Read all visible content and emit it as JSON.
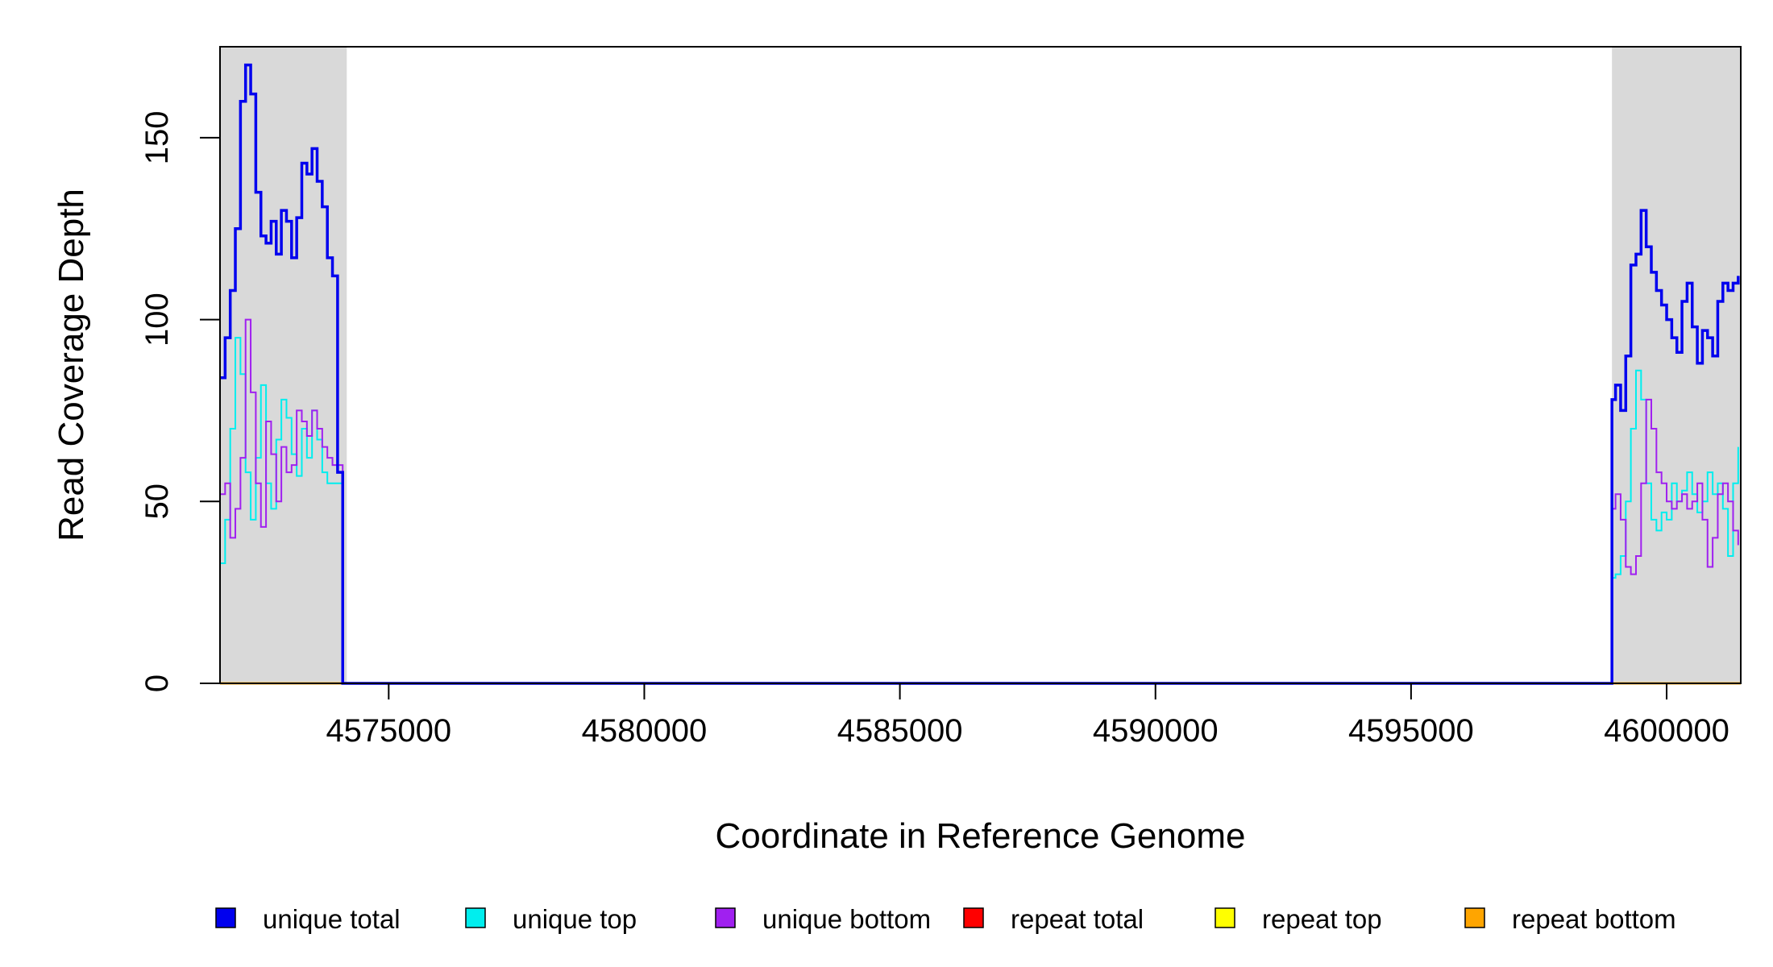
{
  "chart_data": {
    "type": "line",
    "title": "",
    "xlabel": "Coordinate in Reference Genome",
    "ylabel": "Read Coverage Depth",
    "xlim": [
      4571700,
      4601450
    ],
    "ylim": [
      0,
      175
    ],
    "xticks": [
      4575000,
      4580000,
      4585000,
      4590000,
      4595000,
      4600000
    ],
    "xtick_labels": [
      "4575000",
      "4580000",
      "4585000",
      "4590000",
      "4595000",
      "4600000"
    ],
    "yticks": [
      0,
      50,
      100,
      150
    ],
    "ytick_labels": [
      "0",
      "50",
      "100",
      "150"
    ],
    "grid": false,
    "shaded_regions": [
      {
        "x0": 4571700,
        "x1": 4574180,
        "color": "#d9d9d9"
      },
      {
        "x0": 4598930,
        "x1": 4601450,
        "color": "#d9d9d9"
      }
    ],
    "legend_position": "bottom",
    "series": [
      {
        "name": "unique total",
        "color": "#0000ee",
        "x": [
          4571700,
          4571800,
          4571900,
          4572000,
          4572100,
          4572200,
          4572300,
          4572400,
          4572500,
          4572600,
          4572700,
          4572800,
          4572900,
          4573000,
          4573100,
          4573200,
          4573300,
          4573400,
          4573500,
          4573600,
          4573700,
          4573800,
          4573900,
          4574000,
          4574100,
          4574180,
          4574200,
          4598900,
          4598930,
          4599000,
          4599100,
          4599200,
          4599300,
          4599400,
          4599500,
          4599600,
          4599700,
          4599800,
          4599900,
          4600000,
          4600100,
          4600200,
          4600300,
          4600400,
          4600500,
          4600600,
          4600700,
          4600800,
          4600900,
          4601000,
          4601100,
          4601200,
          4601300,
          4601400
        ],
        "y": [
          84,
          95,
          108,
          125,
          160,
          170,
          162,
          135,
          123,
          121,
          127,
          118,
          130,
          127,
          117,
          128,
          143,
          140,
          147,
          138,
          131,
          117,
          112,
          58,
          0,
          0,
          0,
          0,
          78,
          82,
          75,
          90,
          115,
          118,
          130,
          120,
          113,
          108,
          104,
          100,
          95,
          91,
          105,
          110,
          98,
          88,
          97,
          95,
          90,
          105,
          110,
          108,
          110,
          112
        ],
        "values_note": ""
      },
      {
        "name": "unique top",
        "color": "#00eeee",
        "x": [
          4571700,
          4571800,
          4571900,
          4572000,
          4572100,
          4572200,
          4572300,
          4572400,
          4572500,
          4572600,
          4572700,
          4572800,
          4572900,
          4573000,
          4573100,
          4573200,
          4573300,
          4573400,
          4573500,
          4573600,
          4573700,
          4573800,
          4573900,
          4574000,
          4574100,
          4574180,
          4574200,
          4598900,
          4598930,
          4599000,
          4599100,
          4599200,
          4599300,
          4599400,
          4599500,
          4599600,
          4599700,
          4599800,
          4599900,
          4600000,
          4600100,
          4600200,
          4600300,
          4600400,
          4600500,
          4600600,
          4600700,
          4600800,
          4600900,
          4601000,
          4601100,
          4601200,
          4601300,
          4601400
        ],
        "y": [
          33,
          45,
          70,
          95,
          85,
          58,
          45,
          62,
          82,
          55,
          48,
          67,
          78,
          73,
          63,
          57,
          70,
          62,
          75,
          67,
          58,
          55,
          55,
          55,
          0,
          0,
          0,
          0,
          29,
          30,
          35,
          50,
          70,
          86,
          78,
          55,
          45,
          42,
          47,
          45,
          55,
          50,
          53,
          58,
          52,
          47,
          50,
          58,
          52,
          55,
          48,
          35,
          55,
          65
        ]
      },
      {
        "name": "unique bottom",
        "color": "#a020f0",
        "x": [
          4571700,
          4571800,
          4571900,
          4572000,
          4572100,
          4572200,
          4572300,
          4572400,
          4572500,
          4572600,
          4572700,
          4572800,
          4572900,
          4573000,
          4573100,
          4573200,
          4573300,
          4573400,
          4573500,
          4573600,
          4573700,
          4573800,
          4573900,
          4574000,
          4574100,
          4574180,
          4574200,
          4598900,
          4598930,
          4599000,
          4599100,
          4599200,
          4599300,
          4599400,
          4599500,
          4599600,
          4599700,
          4599800,
          4599900,
          4600000,
          4600100,
          4600200,
          4600300,
          4600400,
          4600500,
          4600600,
          4600700,
          4600800,
          4600900,
          4601000,
          4601100,
          4601200,
          4601300,
          4601400
        ],
        "y": [
          52,
          55,
          40,
          48,
          62,
          100,
          80,
          55,
          43,
          72,
          63,
          50,
          65,
          58,
          60,
          75,
          72,
          68,
          75,
          70,
          65,
          62,
          60,
          60,
          0,
          0,
          0,
          0,
          48,
          52,
          45,
          32,
          30,
          35,
          55,
          78,
          70,
          58,
          55,
          50,
          48,
          50,
          52,
          48,
          50,
          55,
          45,
          32,
          40,
          52,
          55,
          50,
          42,
          38
        ]
      },
      {
        "name": "repeat total",
        "color": "#ff0000",
        "x": [
          4571700,
          4601450
        ],
        "y": [
          0,
          0
        ]
      },
      {
        "name": "repeat top",
        "color": "#ffff00",
        "x": [
          4571700,
          4601450
        ],
        "y": [
          0,
          0
        ]
      },
      {
        "name": "repeat bottom",
        "color": "#ffa500",
        "x": [
          4571700,
          4601450
        ],
        "y": [
          0,
          0
        ]
      }
    ]
  }
}
